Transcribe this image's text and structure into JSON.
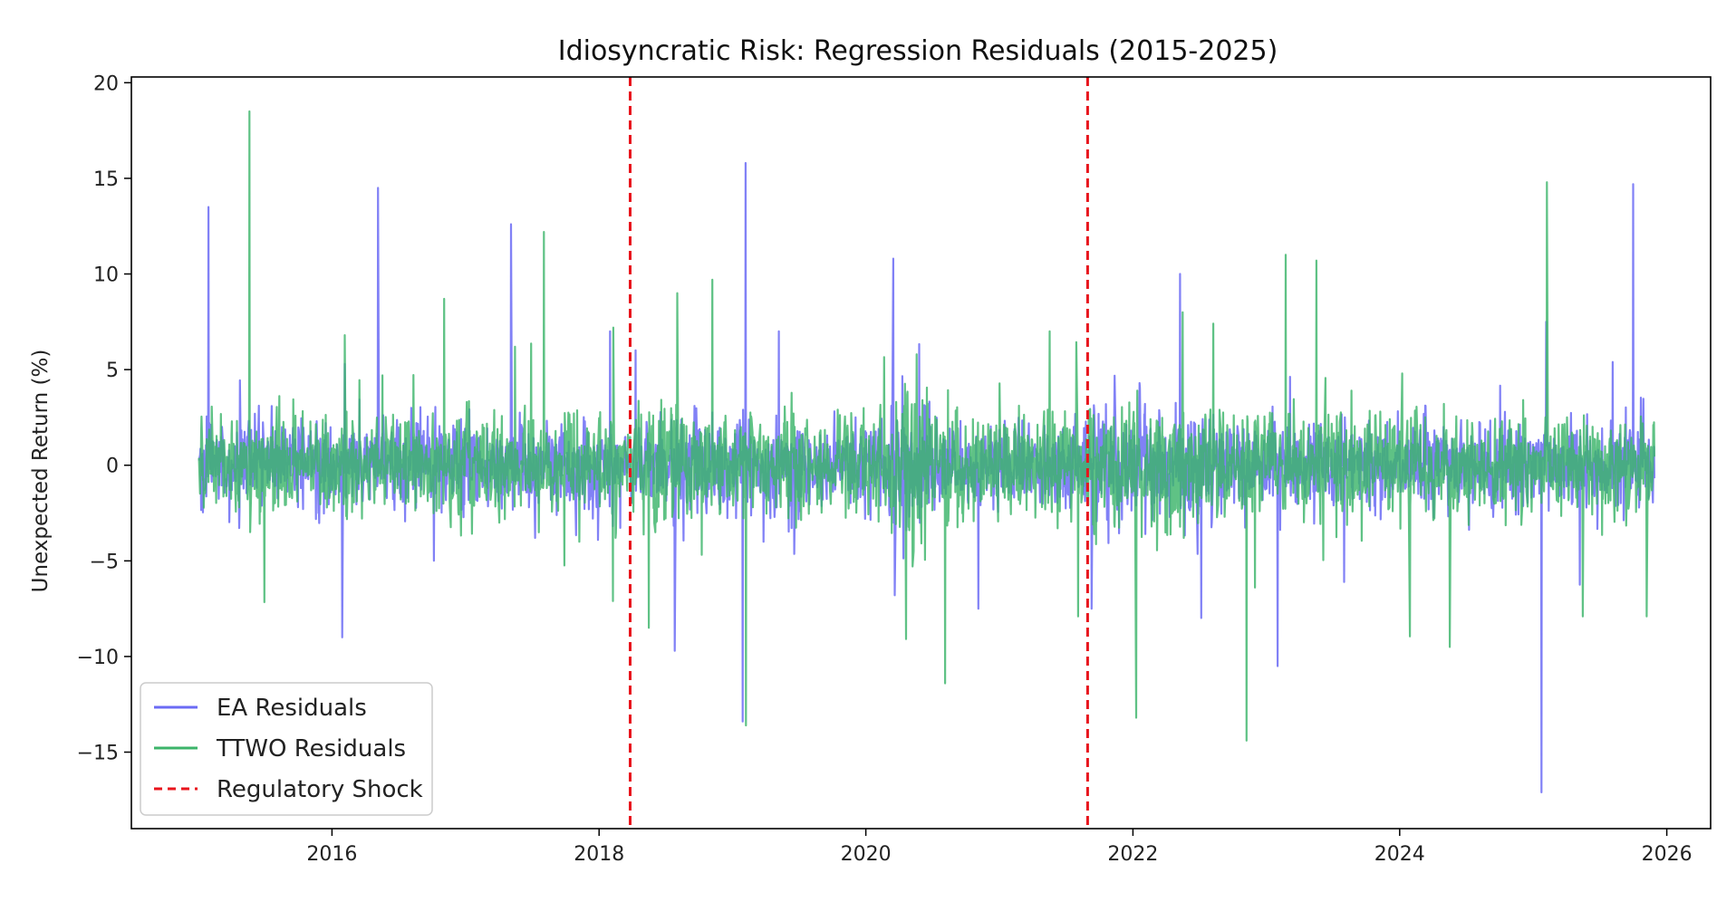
{
  "chart_data": {
    "type": "line",
    "title": "Idiosyncratic Risk: Regression Residuals (2015-2025)",
    "xlabel": "",
    "ylabel": "Unexpected Return (%)",
    "x_range": [
      "2014-07-01",
      "2026-05-01"
    ],
    "ylim": [
      -19,
      20.3
    ],
    "x_ticks": [
      "2016",
      "2018",
      "2020",
      "2022",
      "2024",
      "2026"
    ],
    "y_ticks": [
      20,
      15,
      10,
      5,
      0,
      -5,
      -10,
      -15
    ],
    "y_tick_labels": [
      "20",
      "15",
      "10",
      "5",
      "0",
      "−5",
      "−10",
      "−15"
    ],
    "grid": false,
    "legend_position": "lower-left",
    "series": [
      {
        "name": "EA Residuals",
        "color": "#6b6bf5",
        "typical_noise_std": 1.1,
        "spikes": [
          [
            "2015-01-28",
            13.5
          ],
          [
            "2015-07-20",
            3.1
          ],
          [
            "2016-01-29",
            -9.0
          ],
          [
            "2016-02-05",
            5.3
          ],
          [
            "2016-05-06",
            14.5
          ],
          [
            "2017-05-05",
            12.6
          ],
          [
            "2017-07-10",
            -3.8
          ],
          [
            "2018-01-31",
            7.0
          ],
          [
            "2018-07-27",
            -9.7
          ],
          [
            "2019-01-29",
            -13.4
          ],
          [
            "2019-02-06",
            15.8
          ],
          [
            "2019-05-08",
            7.0
          ],
          [
            "2020-03-16",
            10.8
          ],
          [
            "2020-03-20",
            -6.8
          ],
          [
            "2020-11-04",
            -7.5
          ],
          [
            "2021-09-10",
            -7.5
          ],
          [
            "2022-05-10",
            10.0
          ],
          [
            "2023-02-01",
            -10.5
          ],
          [
            "2023-08-02",
            -6.1
          ],
          [
            "2025-01-23",
            -17.1
          ],
          [
            "2025-02-05",
            7.5
          ],
          [
            "2025-08-06",
            5.4
          ],
          [
            "2025-10-01",
            14.7
          ]
        ]
      },
      {
        "name": "TTWO Residuals",
        "color": "#3cb46a",
        "typical_noise_std": 1.3,
        "spikes": [
          [
            "2015-05-20",
            18.5
          ],
          [
            "2015-05-22",
            -3.5
          ],
          [
            "2016-02-05",
            6.8
          ],
          [
            "2016-05-18",
            4.7
          ],
          [
            "2016-11-03",
            8.7
          ],
          [
            "2017-05-16",
            6.2
          ],
          [
            "2017-08-03",
            12.2
          ],
          [
            "2017-11-08",
            -4.0
          ],
          [
            "2018-02-08",
            -7.1
          ],
          [
            "2018-02-09",
            7.2
          ],
          [
            "2018-05-17",
            -8.5
          ],
          [
            "2018-08-03",
            9.0
          ],
          [
            "2018-11-07",
            9.7
          ],
          [
            "2019-02-07",
            -13.6
          ],
          [
            "2020-05-19",
            5.8
          ],
          [
            "2020-08-05",
            -11.4
          ],
          [
            "2021-05-18",
            7.0
          ],
          [
            "2021-08-04",
            -7.9
          ],
          [
            "2022-01-10",
            -13.2
          ],
          [
            "2022-05-17",
            8.0
          ],
          [
            "2022-08-09",
            7.4
          ],
          [
            "2022-11-08",
            -14.4
          ],
          [
            "2023-05-18",
            10.7
          ],
          [
            "2024-05-17",
            -9.5
          ],
          [
            "2025-02-07",
            14.8
          ],
          [
            "2025-05-16",
            -7.9
          ],
          [
            "2025-11-07",
            -7.9
          ]
        ]
      }
    ],
    "vertical_lines": [
      {
        "name": "Regulatory Shock",
        "x": "2018-03-27",
        "color": "#e8141c",
        "style": "dashed"
      },
      {
        "name": "Regulatory Shock",
        "x": "2021-08-30",
        "color": "#e8141c",
        "style": "dashed"
      }
    ],
    "legend": [
      {
        "label": "EA Residuals",
        "color": "#6b6bf5",
        "style": "solid"
      },
      {
        "label": "TTWO Residuals",
        "color": "#3cb46a",
        "style": "solid"
      },
      {
        "label": "Regulatory Shock",
        "color": "#e8141c",
        "style": "dashed"
      }
    ]
  }
}
